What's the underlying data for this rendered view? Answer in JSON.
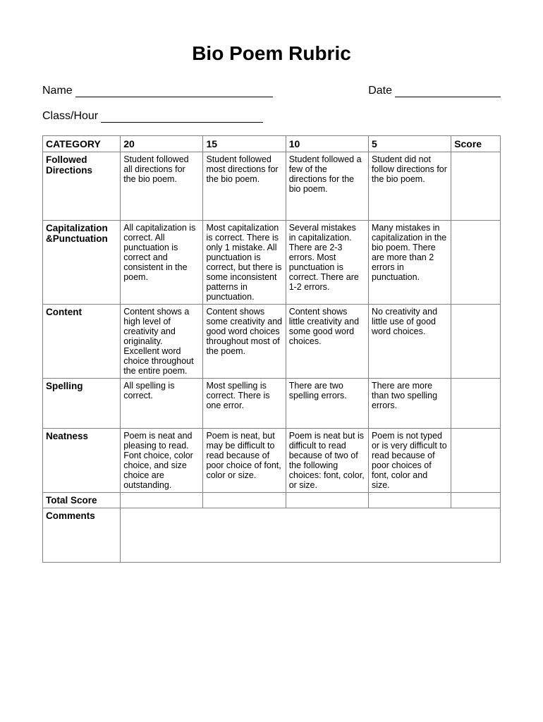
{
  "title": "Bio Poem Rubric",
  "fields": {
    "name_label": "Name",
    "date_label": "Date",
    "class_label": "Class/Hour"
  },
  "headers": {
    "category": "CATEGORY",
    "col20": "20",
    "col15": "15",
    "col10": "10",
    "col5": "5",
    "score": "Score"
  },
  "rows": [
    {
      "label": "Followed Directions",
      "c20": "Student followed all directions for the bio poem.",
      "c15": "Student followed most directions for the bio poem.",
      "c10": "Student followed a few of the directions for the bio poem.",
      "c5": "Student did not follow directions for the bio poem."
    },
    {
      "label": "Capitalization &Punctuation",
      "c20": "All capitalization is correct. All punctuation is correct and consistent in the poem.",
      "c15": "Most capitalization is correct. There is only 1 mistake. All punctuation is correct, but there is some inconsistent patterns in punctuation.",
      "c10": "Several mistakes in capitalization. There are 2-3 errors. Most punctuation is correct. There are 1-2 errors.",
      "c5": "Many mistakes in capitalization in the bio poem. There are more than 2 errors in punctuation."
    },
    {
      "label": "Content",
      "c20": "Content shows a high level of creativity and originality. Excellent word choice throughout the entire poem.",
      "c15": "Content shows some creativity and good word choices throughout most of the poem.",
      "c10": "Content shows little creativity and some good word choices.",
      "c5": "No creativity and little use of good word choices."
    },
    {
      "label": "Spelling",
      "c20": "All spelling is correct.",
      "c15": "Most spelling is correct. There is one error.",
      "c10": "There are two spelling errors.",
      "c5": "There are more than two spelling errors."
    },
    {
      "label": "Neatness",
      "c20": "Poem is neat and pleasing to read. Font choice, color choice, and size choice are outstanding.",
      "c15": "Poem is neat, but may be difficult to read because of poor choice of font, color or size.",
      "c10": "Poem is neat but is difficult to read because of two of the following choices: font, color, or size.",
      "c5": "Poem is not typed or is very difficult to read because of poor choices of font, color and size."
    }
  ],
  "total_label": "Total Score",
  "comments_label": "Comments"
}
